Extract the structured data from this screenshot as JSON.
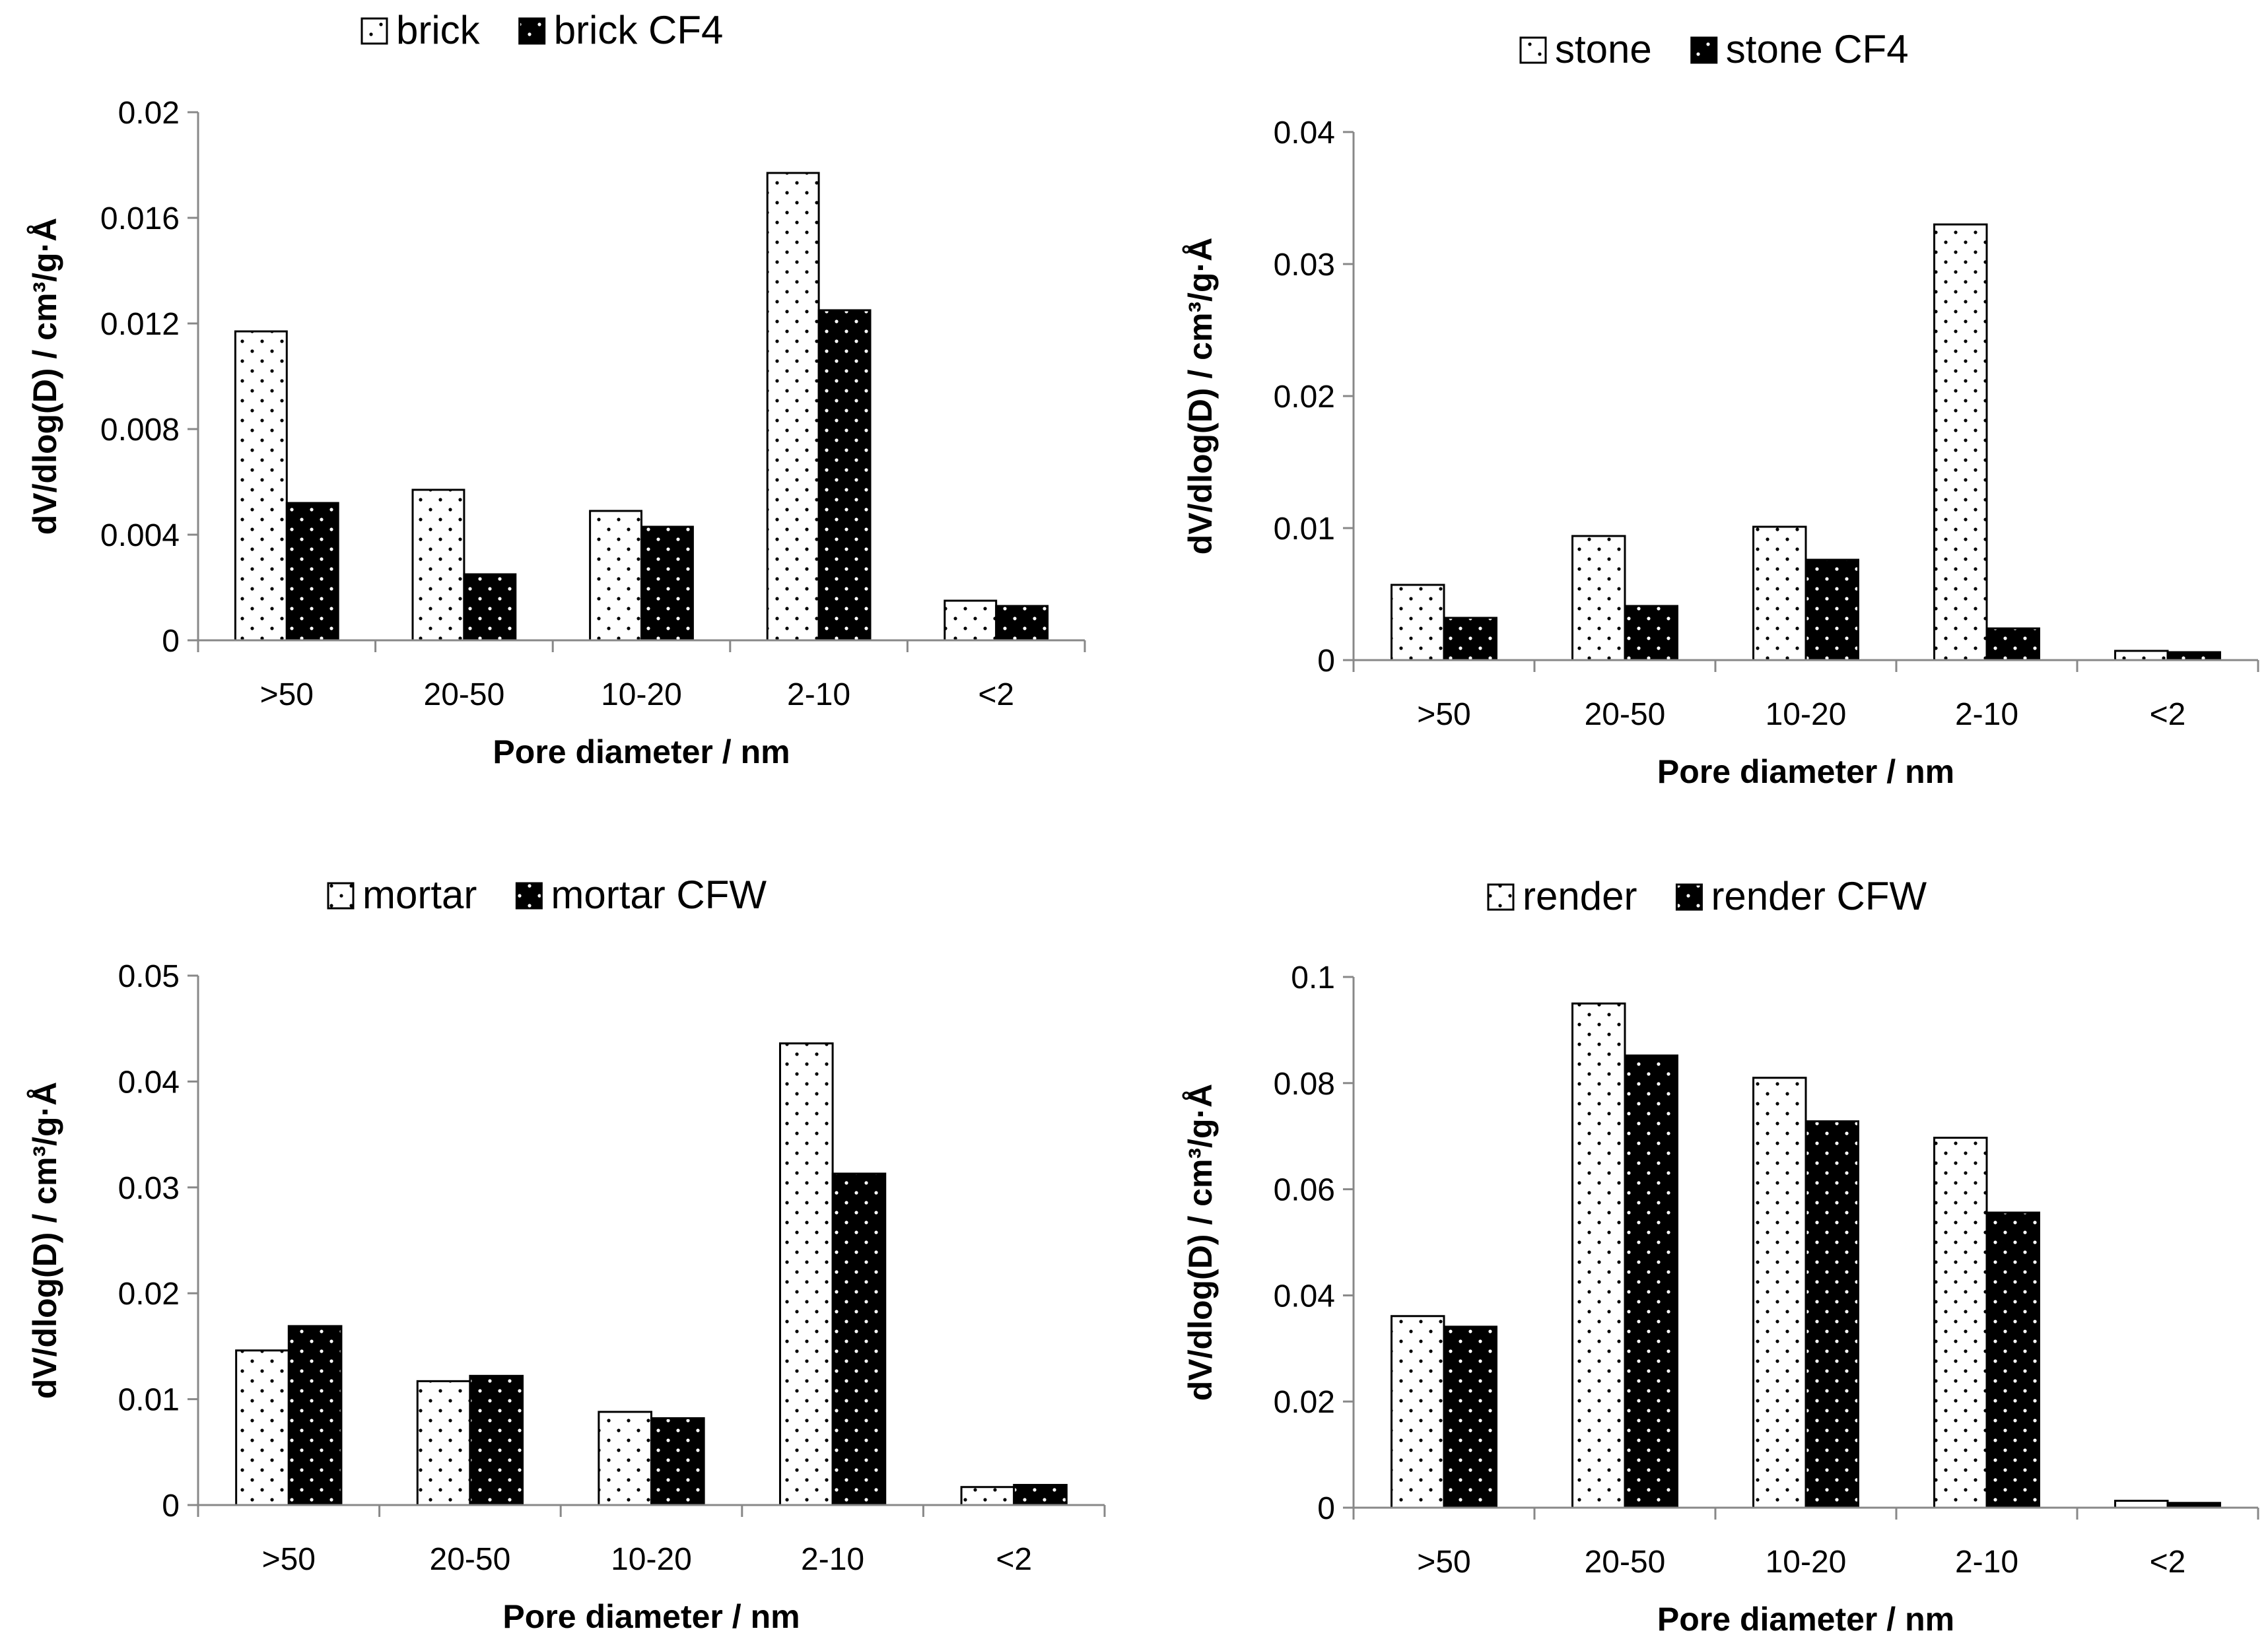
{
  "chart_data": [
    {
      "type": "bar",
      "title": "",
      "categories": [
        ">50",
        "20-50",
        "10-20",
        "2-10",
        "<2"
      ],
      "series": [
        {
          "name": "brick",
          "pattern": "light-dots",
          "values": [
            0.0117,
            0.0057,
            0.0049,
            0.0177,
            0.0015
          ]
        },
        {
          "name": "brick CF4",
          "pattern": "dark-dots",
          "values": [
            0.0052,
            0.0025,
            0.0043,
            0.0125,
            0.0013
          ]
        }
      ],
      "xlabel": "Pore diameter / nm",
      "ylabel": "dV/dlog(D) / cm³/g·Å",
      "ylim": [
        0,
        0.02
      ],
      "yticks": [
        "0",
        "0.004",
        "0.008",
        "0.012",
        "0.016",
        "0.02"
      ],
      "legend": "top-center",
      "grid": false
    },
    {
      "type": "bar",
      "title": "",
      "categories": [
        ">50",
        "20-50",
        "10-20",
        "2-10",
        "<2"
      ],
      "series": [
        {
          "name": "stone",
          "pattern": "light-dots",
          "values": [
            0.0057,
            0.0094,
            0.0101,
            0.033,
            0.0007
          ]
        },
        {
          "name": "stone CF4",
          "pattern": "dark-dots",
          "values": [
            0.0032,
            0.0041,
            0.0076,
            0.0024,
            0.0006
          ]
        }
      ],
      "xlabel": "Pore diameter / nm",
      "ylabel": "dV/dlog(D) / cm³/g·Å",
      "ylim": [
        0,
        0.04
      ],
      "yticks": [
        "0",
        "0.01",
        "0.02",
        "0.03",
        "0.04"
      ],
      "legend": "top-center",
      "grid": false
    },
    {
      "type": "bar",
      "title": "",
      "categories": [
        ">50",
        "20-50",
        "10-20",
        "2-10",
        "<2"
      ],
      "series": [
        {
          "name": "mortar",
          "pattern": "light-dots",
          "values": [
            0.0146,
            0.0117,
            0.0088,
            0.0436,
            0.0017
          ]
        },
        {
          "name": "mortar CFW",
          "pattern": "dark-dots",
          "values": [
            0.0169,
            0.0122,
            0.0082,
            0.0313,
            0.0019
          ]
        }
      ],
      "xlabel": "Pore diameter / nm",
      "ylabel": "dV/dlog(D) / cm³/g·Å",
      "ylim": [
        0,
        0.05
      ],
      "yticks": [
        "0",
        "0.01",
        "0.02",
        "0.03",
        "0.04",
        "0.05"
      ],
      "legend": "top-center",
      "grid": false
    },
    {
      "type": "bar",
      "title": "",
      "categories": [
        ">50",
        "20-50",
        "10-20",
        "2-10",
        "<2"
      ],
      "series": [
        {
          "name": "render",
          "pattern": "light-dots",
          "values": [
            0.0361,
            0.095,
            0.081,
            0.0697,
            0.0013
          ]
        },
        {
          "name": "render CFW",
          "pattern": "dark-dots",
          "values": [
            0.0341,
            0.0852,
            0.0728,
            0.0556,
            0.0009
          ]
        }
      ],
      "xlabel": "Pore diameter / nm",
      "ylabel": "dV/dlog(D) / cm³/g·Å",
      "ylim": [
        0,
        0.1
      ],
      "yticks": [
        "0",
        "0.02",
        "0.04",
        "0.06",
        "0.08",
        "0.1"
      ],
      "legend": "top-center",
      "grid": false
    }
  ]
}
